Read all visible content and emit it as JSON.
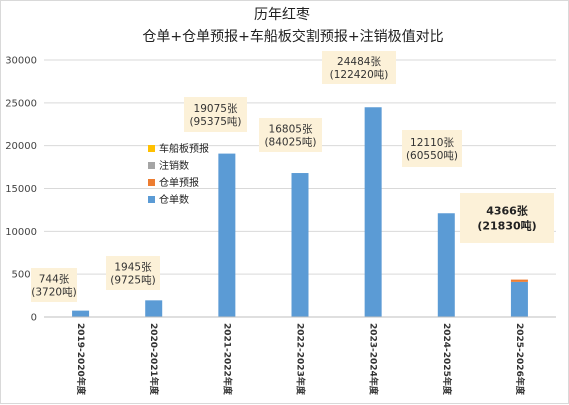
{
  "chart_data": {
    "type": "bar",
    "stacked": true,
    "title": "历年红枣",
    "subtitle": "仓单+仓单预报+车船板交割预报+注销极值对比",
    "ylim": [
      0,
      30000
    ],
    "yticks": [
      "0",
      "5000",
      "10000",
      "15000",
      "20000",
      "25000",
      "30000"
    ],
    "categories": [
      "2019-2020年度",
      "2020-2021年度",
      "2021-2022年度",
      "2022-2023年度",
      "2023-2024年度",
      "2024-2025年度",
      "2025-2026年度"
    ],
    "series": [
      {
        "name": "仓单数",
        "color": "#5b9bd5",
        "values": [
          744,
          1945,
          19075,
          16805,
          24484,
          12110,
          4100
        ]
      },
      {
        "name": "仓单预报",
        "color": "#ed7d31",
        "values": [
          0,
          0,
          0,
          0,
          0,
          0,
          266
        ]
      },
      {
        "name": "注销数",
        "color": "#a5a5a5",
        "values": [
          0,
          0,
          0,
          0,
          0,
          0,
          0
        ]
      },
      {
        "name": "车船板预报",
        "color": "#ffc000",
        "values": [
          0,
          0,
          0,
          0,
          0,
          0,
          0
        ]
      }
    ],
    "legend_order": [
      3,
      2,
      1,
      0
    ],
    "annotations": [
      {
        "line1": "744张",
        "line2": "(3720吨)",
        "bold": false
      },
      {
        "line1": "1945张",
        "line2": "(9725吨)",
        "bold": false
      },
      {
        "line1": "19075张",
        "line2": "(95375吨)",
        "bold": false
      },
      {
        "line1": "16805张",
        "line2": "(84025吨)",
        "bold": false
      },
      {
        "line1": "24484张",
        "line2": "(122420吨)",
        "bold": false
      },
      {
        "line1": "12110张",
        "line2": "(60550吨)",
        "bold": false
      },
      {
        "line1": "4366张",
        "line2": "(21830吨)",
        "bold": true
      }
    ]
  }
}
